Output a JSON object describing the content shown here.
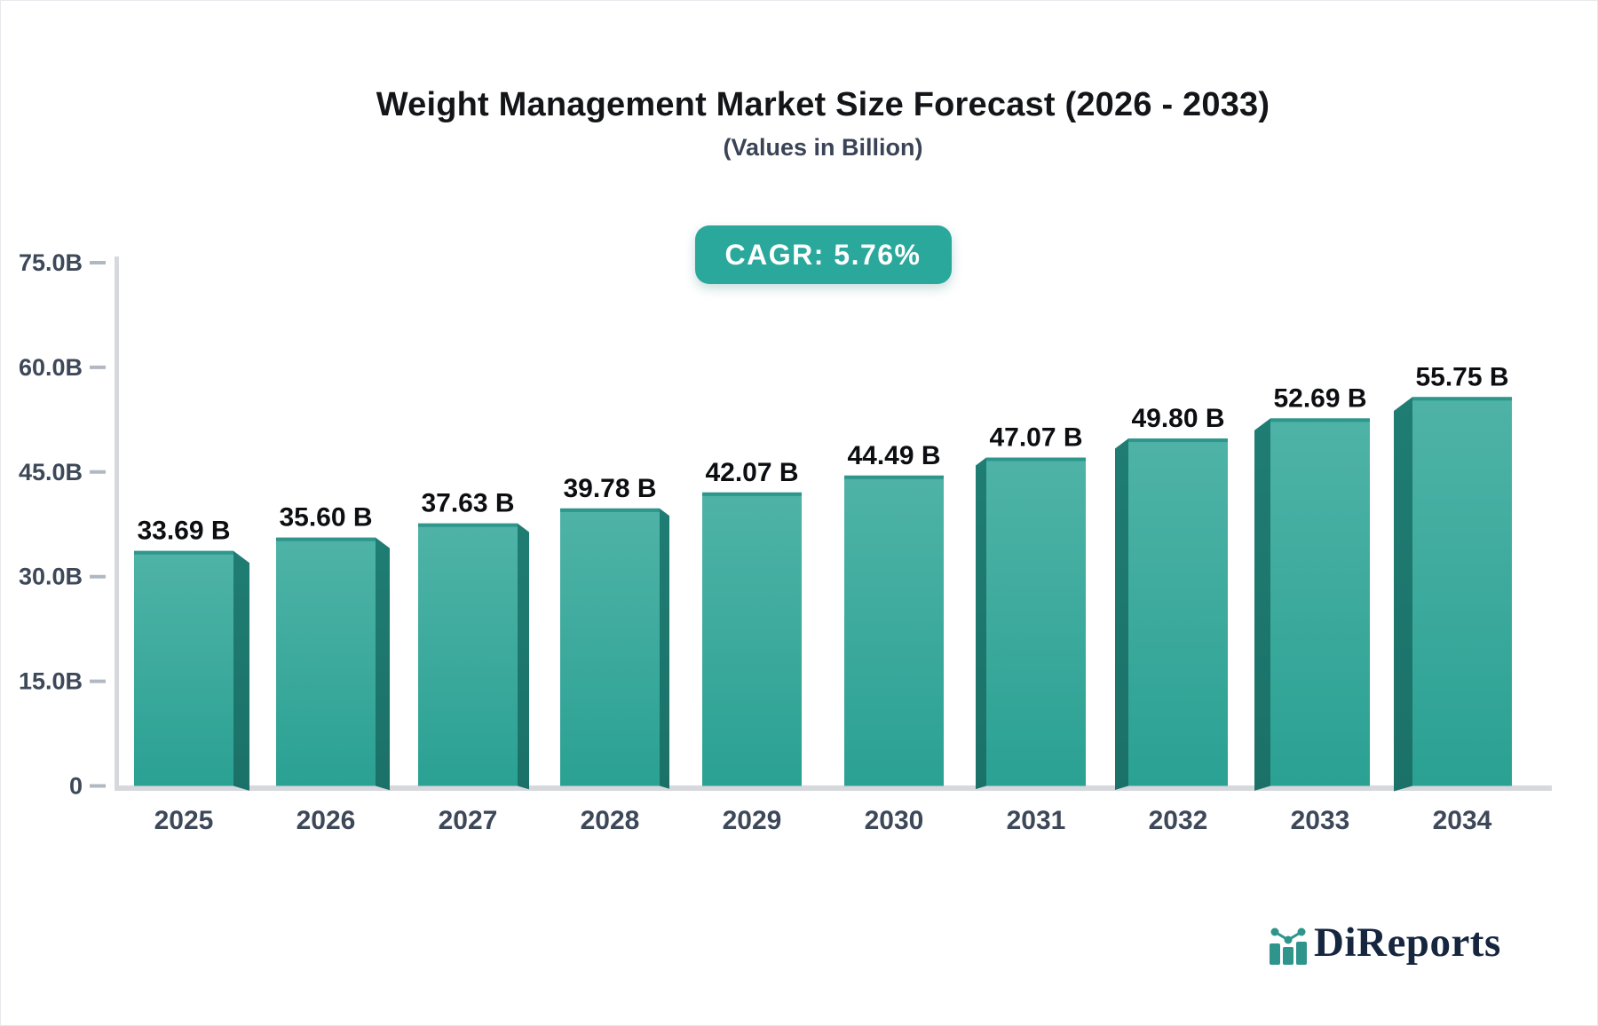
{
  "chart_data": {
    "type": "bar",
    "title": "Weight Management Market Size Forecast (2026 - 2033)",
    "subtitle": "(Values in Billion)",
    "cagr_label": "CAGR: 5.76%",
    "categories": [
      "2025",
      "2026",
      "2027",
      "2028",
      "2029",
      "2030",
      "2031",
      "2032",
      "2033",
      "2034"
    ],
    "values": [
      33.69,
      35.6,
      37.63,
      39.78,
      42.07,
      44.49,
      47.07,
      49.8,
      52.69,
      55.75
    ],
    "value_labels": [
      "33.69 B",
      "35.60 B",
      "37.63 B",
      "39.78 B",
      "42.07 B",
      "44.49 B",
      "47.07 B",
      "49.80 B",
      "52.69 B",
      "55.75 B"
    ],
    "xlabel": "",
    "ylabel": "",
    "ylim": [
      0,
      75
    ],
    "ytick_values": [
      0,
      15,
      30,
      45,
      60,
      75
    ],
    "ytick_labels": [
      "0",
      "15.0B",
      "30.0B",
      "45.0B",
      "60.0B",
      "75.0B"
    ],
    "grid": false,
    "legend": false
  },
  "logo": {
    "text": "DiReports",
    "icon": "bar-chart-logo-icon"
  },
  "colors": {
    "badge_teal": "#2aa89c",
    "bar_face_top": "#4fb3a7",
    "bar_face_bottom": "#2aa193",
    "bar_top_edge": "#2e968b",
    "bar_side_top": "#1f7d73",
    "bar_side_bottom": "#1b7168",
    "axis_line": "#d6d8dd",
    "tick_mark": "#b2b8c1",
    "axis_text": "#3d4859",
    "value_text": "#0d0e11",
    "logo_navy": "#16263e",
    "logo_teal": "#2e948c"
  }
}
